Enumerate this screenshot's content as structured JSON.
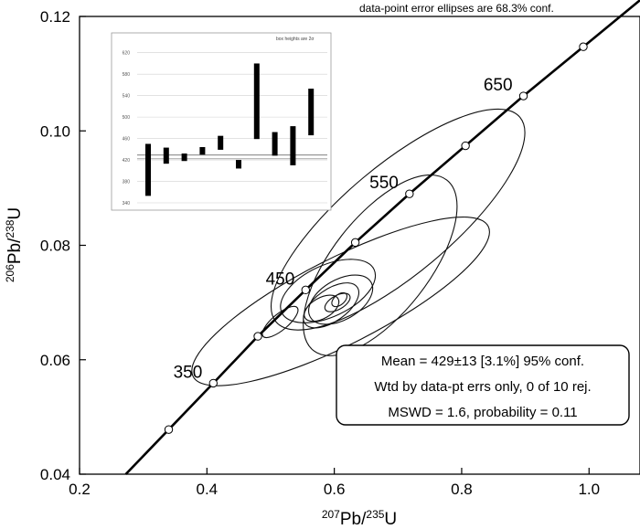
{
  "chart_data": [
    {
      "type": "scatter",
      "title": "",
      "note": "data-point error ellipses are 68.3% conf.",
      "xlabel": {
        "base": "207",
        "sup": "Pb/",
        "sup2": "235",
        "tail": "U"
      },
      "ylabel": {
        "base": "206",
        "sup": "Pb/",
        "sup2": "238",
        "tail": "U"
      },
      "xlim": [
        0.2,
        1.08
      ],
      "ylim": [
        0.04,
        0.12
      ],
      "x_ticks": [
        "0.2",
        "0.4",
        "0.6",
        "0.8",
        "1.0"
      ],
      "y_ticks": [
        "0.04",
        "0.06",
        "0.08",
        "0.10",
        "0.12"
      ],
      "grid": false,
      "concordia_points": [
        {
          "x": 0.34,
          "y": 0.0478
        },
        {
          "x": 0.41,
          "y": 0.0559
        },
        {
          "x": 0.48,
          "y": 0.0641
        },
        {
          "x": 0.555,
          "y": 0.0722
        },
        {
          "x": 0.633,
          "y": 0.0805
        },
        {
          "x": 0.718,
          "y": 0.089
        },
        {
          "x": 0.806,
          "y": 0.0974
        },
        {
          "x": 0.897,
          "y": 0.1061
        },
        {
          "x": 0.991,
          "y": 0.1147
        }
      ],
      "concordia_labels": [
        {
          "text": "350",
          "x": 0.41,
          "y": 0.0559
        },
        {
          "text": "450",
          "x": 0.555,
          "y": 0.0722
        },
        {
          "text": "550",
          "x": 0.718,
          "y": 0.089
        },
        {
          "text": "650",
          "x": 0.897,
          "y": 0.1061
        }
      ],
      "ellipses": [
        {
          "x": 0.61,
          "y": 0.0702,
          "rx": 0.26,
          "ry": 0.0075,
          "angle_deg": -27
        },
        {
          "x": 0.7,
          "y": 0.0845,
          "rx": 0.25,
          "ry": 0.0095,
          "angle_deg": -40
        },
        {
          "x": 0.672,
          "y": 0.0765,
          "rx": 0.17,
          "ry": 0.0085,
          "angle_deg": -52
        },
        {
          "x": 0.59,
          "y": 0.072,
          "rx": 0.08,
          "ry": 0.0045,
          "angle_deg": -25
        },
        {
          "x": 0.61,
          "y": 0.0705,
          "rx": 0.055,
          "ry": 0.0035,
          "angle_deg": -30
        },
        {
          "x": 0.595,
          "y": 0.0695,
          "rx": 0.05,
          "ry": 0.0028,
          "angle_deg": -35
        },
        {
          "x": 0.58,
          "y": 0.069,
          "rx": 0.03,
          "ry": 0.0018,
          "angle_deg": -30
        },
        {
          "x": 0.605,
          "y": 0.07,
          "rx": 0.022,
          "ry": 0.0012,
          "angle_deg": -30
        },
        {
          "x": 0.608,
          "y": 0.0705,
          "rx": 0.014,
          "ry": 0.0009,
          "angle_deg": -40
        },
        {
          "x": 0.515,
          "y": 0.0666,
          "rx": 0.035,
          "ry": 0.0014,
          "angle_deg": -40
        }
      ],
      "stats": {
        "line1": "Mean = 429±13  [3.1%]  95% conf.",
        "line2": "Wtd by data-pt errs only, 0 of 10 rej.",
        "line3": "MSWD = 1.6, probability = 0.11"
      }
    },
    {
      "type": "bar",
      "title": "box heights are 2σ",
      "ylim": [
        340,
        640
      ],
      "y_ticks": [
        "340",
        "380",
        "420",
        "460",
        "500",
        "540",
        "580",
        "620"
      ],
      "mean_line": 429,
      "grid": true,
      "bars": [
        {
          "low": 353,
          "high": 450
        },
        {
          "low": 413,
          "high": 443
        },
        {
          "low": 418,
          "high": 432
        },
        {
          "low": 430,
          "high": 444
        },
        {
          "low": 439,
          "high": 465
        },
        {
          "low": 404,
          "high": 420
        },
        {
          "low": 459,
          "high": 600
        },
        {
          "low": 428,
          "high": 472
        },
        {
          "low": 410,
          "high": 483
        },
        {
          "low": 466,
          "high": 553
        }
      ]
    }
  ]
}
